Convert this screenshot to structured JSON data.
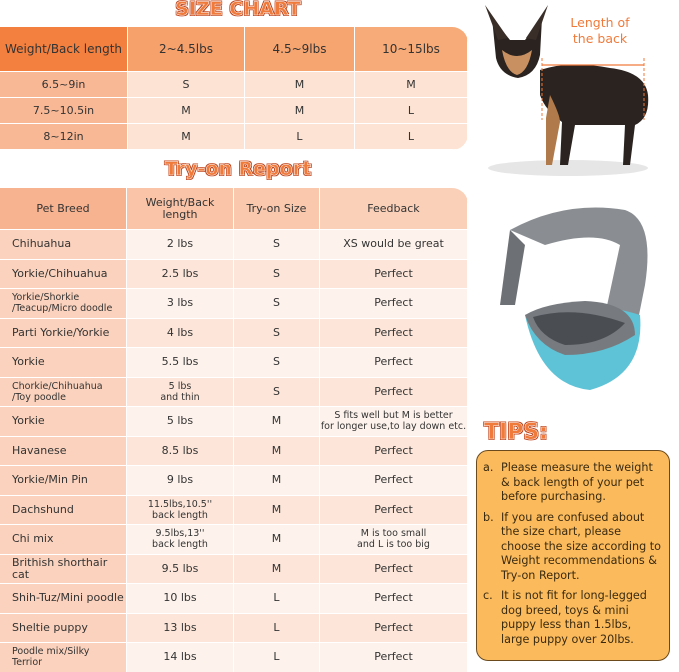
{
  "size_chart": {
    "title": "SIZE CHART",
    "header": [
      "Weight/Back length",
      "2~4.5lbs",
      "4.5~9lbs",
      "10~15lbs"
    ],
    "rows": [
      [
        "6.5~9in",
        "S",
        "M",
        "M"
      ],
      [
        "7.5~10.5in",
        "M",
        "M",
        "L"
      ],
      [
        "8~12in",
        "M",
        "L",
        "L"
      ]
    ]
  },
  "try_on_report": {
    "title": "Try-on Report",
    "header": [
      "Pet Breed",
      "Weight/Back length",
      "Try-on Size",
      "Feedback"
    ],
    "rows": [
      [
        "Chihuahua",
        "2 lbs",
        "S",
        "XS would be great"
      ],
      [
        "Yorkie/Chihuahua",
        "2.5 lbs",
        "S",
        "Perfect"
      ],
      [
        [
          "Yorkie/Shorkie",
          "/Teacup/Micro doodle"
        ],
        "3 lbs",
        "S",
        "Perfect"
      ],
      [
        "Parti Yorkie/Yorkie",
        "4 lbs",
        "S",
        "Perfect"
      ],
      [
        "Yorkie",
        "5.5 lbs",
        "S",
        "Perfect"
      ],
      [
        [
          "Chorkie/Chihuahua",
          "/Toy poodle"
        ],
        [
          "5 lbs",
          "and thin"
        ],
        "S",
        "Perfect"
      ],
      [
        "Yorkie",
        "5 lbs",
        "M",
        [
          "S fits well but M is better",
          "for longer use,to lay down etc."
        ]
      ],
      [
        "Havanese",
        "8.5 lbs",
        "M",
        "Perfect"
      ],
      [
        "Yorkie/Min Pin",
        "9 lbs",
        "M",
        "Perfect"
      ],
      [
        "Dachshund",
        [
          "11.5lbs,10.5''",
          "back length"
        ],
        "M",
        "Perfect"
      ],
      [
        "Chi mix",
        [
          "9.5lbs,13''",
          "back length"
        ],
        "M",
        [
          "M is too small",
          "and L is too big"
        ]
      ],
      [
        "Brithish shorthair cat",
        "9.5 lbs",
        "M",
        "Perfect"
      ],
      [
        "Shih-Tuz/Mini poodle",
        "10 lbs",
        "L",
        "Perfect"
      ],
      [
        "Sheltie puppy",
        "13 lbs",
        "L",
        "Perfect"
      ],
      [
        [
          "Poodle mix/Silky",
          "Terrior"
        ],
        "14 lbs",
        "L",
        "Perfect"
      ]
    ]
  },
  "dog_image": {
    "label": [
      "Length of",
      "the back"
    ]
  },
  "tips": {
    "title": "TIPS:",
    "items": [
      {
        "marker": "a.",
        "text": "Please measure the weight & back length of your pet before purchasing."
      },
      {
        "marker": "b.",
        "text": "If you are confused about the size chart, please choose the size according to Weight recommendations & Try-on Report."
      },
      {
        "marker": "c.",
        "text": "It is not fit for long-legged dog breed, toys & mini puppy less than 1.5lbs, large puppy over 20lbs."
      }
    ]
  }
}
